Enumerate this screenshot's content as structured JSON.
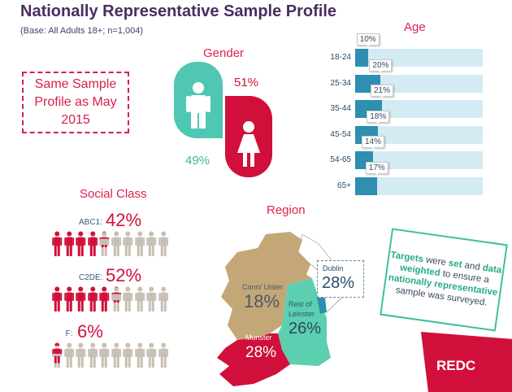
{
  "header": {
    "title": "Nationally Representative Sample Profile",
    "subtitle": "(Base: All Adults 18+; n=1,004)"
  },
  "note": {
    "lines": [
      "Same Sample",
      "Profile as May",
      "2015"
    ]
  },
  "gender": {
    "title": "Gender",
    "female_pct": "51%",
    "male_pct": "49%",
    "colors": {
      "male": "#4fc7b2",
      "female": "#d0103a"
    }
  },
  "age": {
    "title": "Age",
    "rows": [
      {
        "label": "18-24",
        "value": 10,
        "text": "10%"
      },
      {
        "label": "25-34",
        "value": 20,
        "text": "20%"
      },
      {
        "label": "35-44",
        "value": 21,
        "text": "21%"
      },
      {
        "label": "45-54",
        "value": 18,
        "text": "18%"
      },
      {
        "label": "54-65",
        "value": 14,
        "text": "14%"
      },
      {
        "label": "65+",
        "value": 17,
        "text": "17%"
      }
    ]
  },
  "social_class": {
    "title": "Social Class",
    "rows": [
      {
        "label": "ABC1:",
        "value": 42,
        "text": "42%"
      },
      {
        "label": "C2DE:",
        "value": 52,
        "text": "52%"
      },
      {
        "label": "F:",
        "value": 6,
        "text": "6%"
      }
    ]
  },
  "region": {
    "title": "Region",
    "areas": [
      {
        "name": "Conn/ Ulster",
        "pct": "18%"
      },
      {
        "name": "Rest of Leinster",
        "pct": "26%"
      },
      {
        "name": "Munster",
        "pct": "28%"
      },
      {
        "name": "Dublin",
        "pct": "28%"
      }
    ]
  },
  "message": {
    "parts": [
      "Targets",
      " were ",
      "set",
      " and ",
      "data weighted",
      " to ensure a ",
      "nationally representative",
      " sample was surveyed."
    ]
  },
  "logo": {
    "text": "REDC"
  }
}
